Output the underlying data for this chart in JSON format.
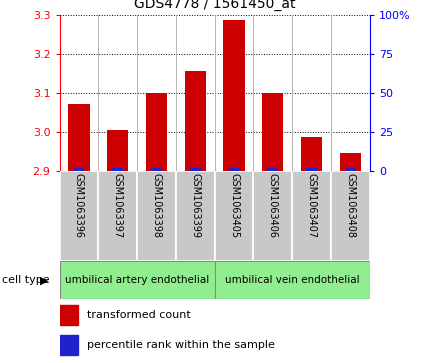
{
  "title": "GDS4778 / 1561450_at",
  "samples": [
    "GSM1063396",
    "GSM1063397",
    "GSM1063398",
    "GSM1063399",
    "GSM1063405",
    "GSM1063406",
    "GSM1063407",
    "GSM1063408"
  ],
  "red_values": [
    3.07,
    3.005,
    3.1,
    3.155,
    3.285,
    3.1,
    2.985,
    2.945
  ],
  "ylim_left": [
    2.9,
    3.3
  ],
  "yticks_left": [
    2.9,
    3.0,
    3.1,
    3.2,
    3.3
  ],
  "ylim_right": [
    0,
    100
  ],
  "yticks_right": [
    0,
    25,
    50,
    75,
    100
  ],
  "yticklabels_right": [
    "0",
    "25",
    "50",
    "75",
    "100%"
  ],
  "cell_type1_label": "umbilical artery endothelial",
  "cell_type2_label": "umbilical vein endothelial",
  "cell_type_color": "#90EE90",
  "bar_color_red": "#cc0000",
  "bar_color_blue": "#2222cc",
  "sample_box_color": "#c8c8c8",
  "bar_width": 0.55,
  "blue_bar_width": 0.28,
  "blue_bar_height": 0.007,
  "cell_type_label": "cell type",
  "legend_red": "transformed count",
  "legend_blue": "percentile rank within the sample"
}
